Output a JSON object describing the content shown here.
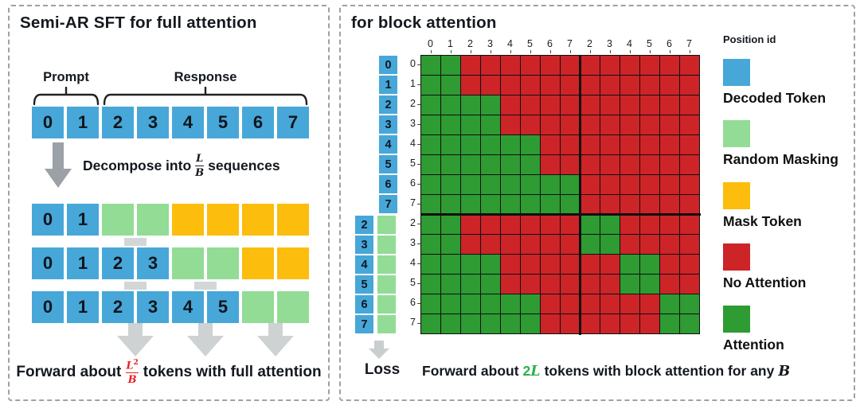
{
  "palette": {
    "blue": "#47a7d8",
    "light_green": "#92dc95",
    "orange": "#fcbd0c",
    "red": "#cd2428",
    "dark_green": "#2e9b33",
    "math_red": "#ea2127",
    "math_green": "#2db04f",
    "arrow_gray": "#9ba1a6",
    "light_arrow_gray": "#ced2d3",
    "grid_line": "#101010"
  },
  "left": {
    "title": "Semi-AR SFT for full attention",
    "prompt_label": "Prompt",
    "response_label": "Response",
    "top_row": [
      "0",
      "1",
      "2",
      "3",
      "4",
      "5",
      "6",
      "7"
    ],
    "decompose": {
      "prefix": "Decompose into",
      "frac_num": "L",
      "frac_den": "B",
      "suffix": "sequences"
    },
    "rows": [
      [
        {
          "label": "0",
          "type": "blue"
        },
        {
          "label": "1",
          "type": "blue"
        },
        {
          "label": "",
          "type": "light_green"
        },
        {
          "label": "",
          "type": "light_green"
        },
        {
          "label": "",
          "type": "orange"
        },
        {
          "label": "",
          "type": "orange"
        },
        {
          "label": "",
          "type": "orange"
        },
        {
          "label": "",
          "type": "orange"
        }
      ],
      [
        {
          "label": "0",
          "type": "blue"
        },
        {
          "label": "1",
          "type": "blue"
        },
        {
          "label": "2",
          "type": "blue"
        },
        {
          "label": "3",
          "type": "blue"
        },
        {
          "label": "",
          "type": "light_green"
        },
        {
          "label": "",
          "type": "light_green"
        },
        {
          "label": "",
          "type": "orange"
        },
        {
          "label": "",
          "type": "orange"
        }
      ],
      [
        {
          "label": "0",
          "type": "blue"
        },
        {
          "label": "1",
          "type": "blue"
        },
        {
          "label": "2",
          "type": "blue"
        },
        {
          "label": "3",
          "type": "blue"
        },
        {
          "label": "4",
          "type": "blue"
        },
        {
          "label": "5",
          "type": "blue"
        },
        {
          "label": "",
          "type": "light_green"
        },
        {
          "label": "",
          "type": "light_green"
        }
      ]
    ],
    "footer": {
      "prefix": "Forward about",
      "frac_num": "L",
      "frac_sup": "2",
      "frac_den": "B",
      "suffix": "tokens with full attention"
    }
  },
  "right": {
    "title": "for block attention",
    "legend_title": "Position id",
    "legend": [
      {
        "label": "Decoded Token",
        "color": "blue"
      },
      {
        "label": "Random Masking",
        "color": "light_green"
      },
      {
        "label": "Mask Token",
        "color": "orange"
      },
      {
        "label": "No Attention",
        "color": "red"
      },
      {
        "label": "Attention",
        "color": "dark_green"
      }
    ],
    "loss_label": "Loss",
    "footer": {
      "prefix": "Forward about",
      "highlight_num": "2",
      "highlight_var": "L",
      "middle": "tokens with block attention for any",
      "math_suffix": "B"
    }
  },
  "chart_data": {
    "type": "heatmap",
    "title": "Block attention mask (14 x 14)",
    "col_labels": [
      "0",
      "1",
      "2",
      "3",
      "4",
      "5",
      "6",
      "7",
      "2",
      "3",
      "4",
      "5",
      "6",
      "7"
    ],
    "row_labels": [
      "0",
      "1",
      "2",
      "3",
      "4",
      "5",
      "6",
      "7",
      "2",
      "3",
      "4",
      "5",
      "6",
      "7"
    ],
    "row_id_squares_top": [
      "0",
      "1",
      "2",
      "3",
      "4",
      "5",
      "6",
      "7"
    ],
    "row_id_squares_bottom": [
      "2",
      "3",
      "4",
      "5",
      "6",
      "7"
    ],
    "cell_encoding": {
      "G": "Attention",
      "R": "No Attention"
    },
    "cells": [
      "GGRRRRRRRRRRRR",
      "GGRRRRRRRRRRRR",
      "GGGGRRRRRRRRRR",
      "GGGGRRRRRRRRRR",
      "GGGGGGRRRRRRRR",
      "GGGGGGRRRRRRRR",
      "GGGGGGGGRRRRRR",
      "GGGGGGGGRRRRRR",
      "GGRRRRRRGGRRRR",
      "GGRRRRRRGGRRRR",
      "GGGGRRRRRRGGRR",
      "GGGGRRRRRRGGRR",
      "GGGGGGRRRRRRGG",
      "GGGGGGRRRRRRGG"
    ],
    "block_separators_after": {
      "row": 8,
      "col": 8
    }
  }
}
